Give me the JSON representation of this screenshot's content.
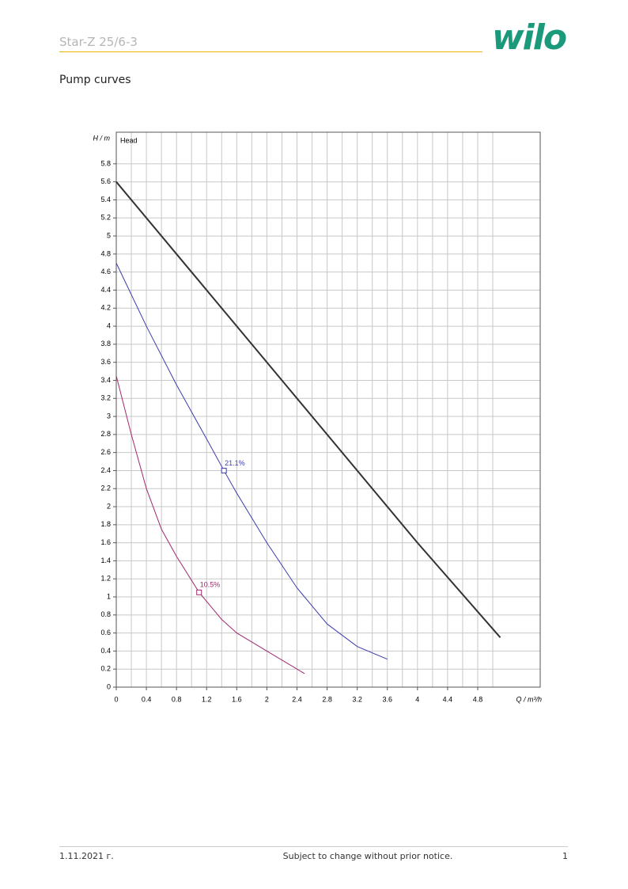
{
  "header": {
    "title": "Star-Z 25/6-3",
    "logo": "wilo"
  },
  "section_title": "Pump curves",
  "chart_data": {
    "type": "line",
    "y_label": "H / m",
    "x_label": "Q / m³/h",
    "curve_label": "Head",
    "xlim": [
      0,
      5.63
    ],
    "ylim": [
      0,
      6.15
    ],
    "xticks": [
      0,
      0.4,
      0.8,
      1.2,
      1.6,
      2,
      2.4,
      2.8,
      3.2,
      3.6,
      4,
      4.4,
      4.8
    ],
    "yticks": [
      0,
      0.2,
      0.4,
      0.6,
      0.8,
      1,
      1.2,
      1.4,
      1.6,
      1.8,
      2,
      2.2,
      2.4,
      2.6,
      2.8,
      3,
      3.2,
      3.4,
      3.6,
      3.8,
      4,
      4.2,
      4.4,
      4.6,
      4.8,
      5,
      5.2,
      5.4,
      5.6,
      5.8
    ],
    "grid": true,
    "series": [
      {
        "color": "#333333",
        "width": 2,
        "x": [
          0,
          1,
          2,
          3,
          4,
          5.1
        ],
        "values": [
          5.6,
          4.6,
          3.6,
          2.6,
          1.6,
          0.55
        ]
      },
      {
        "color": "#3c3cae",
        "width": 1,
        "x": [
          0,
          0.4,
          0.8,
          1.2,
          1.43,
          1.6,
          2,
          2.4,
          2.8,
          3.2,
          3.6
        ],
        "values": [
          4.7,
          4.0,
          3.35,
          2.75,
          2.4,
          2.15,
          1.6,
          1.1,
          0.7,
          0.45,
          0.31
        ],
        "points": [
          {
            "x": 1.43,
            "y": 2.4,
            "label": "21.1%"
          }
        ]
      },
      {
        "color": "#a0286e",
        "width": 1,
        "x": [
          0,
          0.2,
          0.4,
          0.6,
          0.8,
          1.1,
          1.4,
          1.6,
          2,
          2.5
        ],
        "values": [
          3.45,
          2.8,
          2.2,
          1.75,
          1.45,
          1.05,
          0.75,
          0.6,
          0.4,
          0.15
        ],
        "points": [
          {
            "x": 1.1,
            "y": 1.05,
            "label": "10.5%"
          }
        ]
      }
    ]
  },
  "footer": {
    "date": "1.11.2021 г.",
    "notice": "Subject to change without prior notice.",
    "page": "1"
  }
}
